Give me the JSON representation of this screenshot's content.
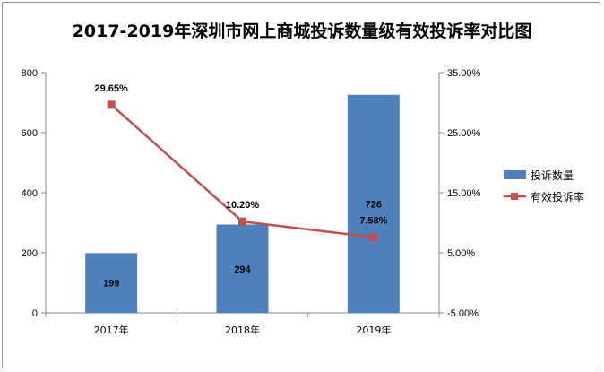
{
  "chart_data": {
    "type": "bar",
    "title": "2017-2019年深圳市网上商城投诉数量级有效投诉率对比图",
    "categories": [
      "2017年",
      "2018年",
      "2019年"
    ],
    "series": [
      {
        "name": "投诉数量",
        "type": "bar",
        "axis": "left",
        "values": [
          199,
          294,
          726
        ],
        "labels": [
          "199",
          "294",
          "726"
        ],
        "color": "#4f81bd"
      },
      {
        "name": "有效投诉率",
        "type": "line",
        "axis": "right",
        "values": [
          29.65,
          10.2,
          7.58
        ],
        "labels": [
          "29.65%",
          "10.20%",
          "7.58%"
        ],
        "color": "#c0504d"
      }
    ],
    "y_left": {
      "ylim": [
        0,
        800
      ],
      "ticks": [
        0,
        200,
        400,
        600,
        800
      ],
      "tick_labels": [
        "0",
        "200",
        "400",
        "600",
        "800"
      ]
    },
    "y_right": {
      "ylim": [
        -5,
        35
      ],
      "ticks": [
        -5,
        5,
        15,
        25,
        35
      ],
      "tick_labels": [
        "-5.00%",
        "5.00%",
        "15.00%",
        "25.00%",
        "35.00%"
      ]
    },
    "grid": false,
    "legend_position": "right"
  }
}
